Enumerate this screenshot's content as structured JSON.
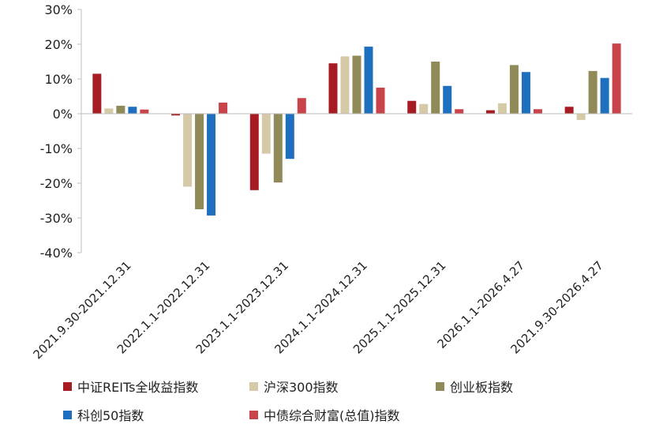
{
  "chart_data": {
    "type": "bar",
    "title": "",
    "xlabel": "",
    "ylabel": "",
    "ylim": [
      -40,
      30
    ],
    "yticks": [
      30,
      20,
      10,
      0,
      -10,
      -20,
      -30,
      -40
    ],
    "ytick_labels": [
      "30%",
      "20%",
      "10%",
      "0%",
      "-10%",
      "-20%",
      "-30%",
      "-40%"
    ],
    "grid": false,
    "legend_position": "bottom",
    "categories": [
      "2021.9.30-2021.12.31",
      "2022.1.1-2022.12.31",
      "2023.1.1-2023.12.31",
      "2024.1.1-2024.12.31",
      "2025.1.1-2025.12.31",
      "2026.1.1-2026.4.27",
      "2021.9.30-2026.4.27"
    ],
    "series": [
      {
        "name": "中证REITs全收益指数",
        "color": "#A61C22",
        "values": [
          11.5,
          -0.5,
          -22,
          14.5,
          3.7,
          1.0,
          2.0
        ]
      },
      {
        "name": "沪深300指数",
        "color": "#D6C9A8",
        "values": [
          1.5,
          -21,
          -11.5,
          16.5,
          2.8,
          3.0,
          -1.8
        ]
      },
      {
        "name": "创业板指数",
        "color": "#8F8A57",
        "values": [
          2.3,
          -27.5,
          -19.8,
          16.7,
          15.0,
          14.0,
          12.3
        ]
      },
      {
        "name": "科创50指数",
        "color": "#1F6FBF",
        "values": [
          2.0,
          -29.3,
          -13.0,
          19.3,
          8.0,
          12.0,
          10.3
        ]
      },
      {
        "name": "中债综合财富(总值)指数",
        "color": "#C9444A",
        "values": [
          1.2,
          3.2,
          4.5,
          7.5,
          1.3,
          1.3,
          20.2
        ]
      }
    ]
  }
}
